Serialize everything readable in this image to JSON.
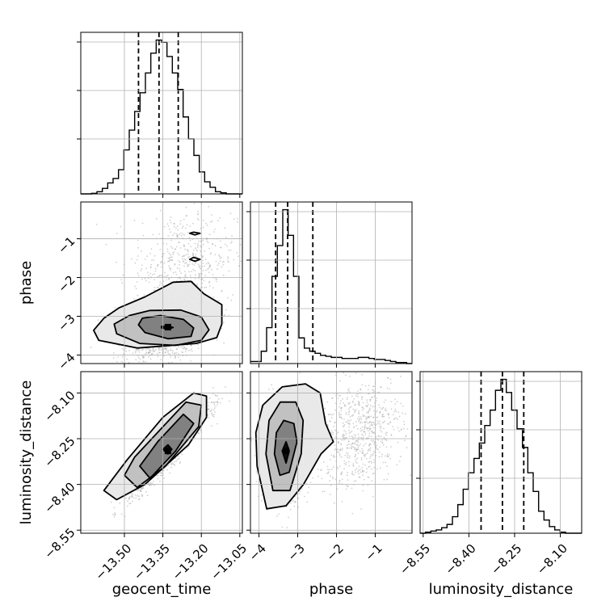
{
  "chart_data": {
    "type": "corner",
    "parameters": [
      "geocent_time",
      "phase",
      "luminosity_distance"
    ],
    "axis_labels": {
      "x": [
        "geocent_time",
        "phase",
        "luminosity_distance"
      ],
      "y": [
        "",
        "phase",
        "luminosity_distance"
      ]
    },
    "ranges": {
      "geocent_time": [
        -13.67,
        -13.04
      ],
      "phase": [
        -4.22,
        -0.05
      ],
      "luminosity_distance": [
        -8.56,
        -8.03
      ]
    },
    "ticks": {
      "geocent_time": [
        {
          "value": -13.5,
          "label": "−13.50"
        },
        {
          "value": -13.35,
          "label": "−13.35"
        },
        {
          "value": -13.2,
          "label": "−13.20"
        },
        {
          "value": -13.05,
          "label": "−13.05"
        }
      ],
      "phase": [
        {
          "value": -4,
          "label": "−4"
        },
        {
          "value": -3,
          "label": "−3"
        },
        {
          "value": -2,
          "label": "−2"
        },
        {
          "value": -1,
          "label": "−1"
        }
      ],
      "luminosity_distance": [
        {
          "value": -8.55,
          "label": "−8.55"
        },
        {
          "value": -8.4,
          "label": "−8.40"
        },
        {
          "value": -8.25,
          "label": "−8.25"
        },
        {
          "value": -8.1,
          "label": "−8.10"
        }
      ]
    },
    "histograms": {
      "geocent_time": {
        "bin_edges": [
          -13.67,
          -13.649,
          -13.628,
          -13.607,
          -13.586,
          -13.565,
          -13.544,
          -13.523,
          -13.502,
          -13.481,
          -13.46,
          -13.439,
          -13.418,
          -13.397,
          -13.376,
          -13.355,
          -13.334,
          -13.313,
          -13.292,
          -13.271,
          -13.25,
          -13.229,
          -13.208,
          -13.187,
          -13.166,
          -13.145,
          -13.124,
          -13.103,
          -13.082,
          -13.061,
          -13.04
        ],
        "values": [
          0,
          0,
          0.5,
          2,
          5,
          10,
          14,
          22,
          40,
          58,
          75,
          92,
          110,
          128,
          140,
          138,
          125,
          110,
          95,
          70,
          50,
          35,
          20,
          11,
          6,
          2,
          1,
          0,
          0,
          0
        ],
        "quantiles": [
          -13.445,
          -13.365,
          -13.29
        ]
      },
      "phase": {
        "bin_edges": [
          -4.22,
          -4.081,
          -3.942,
          -3.803,
          -3.664,
          -3.525,
          -3.386,
          -3.247,
          -3.108,
          -2.969,
          -2.83,
          -2.691,
          -2.552,
          -2.413,
          -2.274,
          -2.135,
          -1.996,
          -1.857,
          -1.718,
          -1.579,
          -1.44,
          -1.301,
          -1.162,
          -1.023,
          -0.884,
          -0.745,
          -0.606,
          -0.467,
          -0.328,
          -0.189,
          -0.05
        ],
        "values": [
          2,
          2,
          12,
          35,
          85,
          115,
          150,
          125,
          85,
          25,
          15,
          12,
          10,
          8,
          7,
          6,
          6,
          5,
          5,
          5,
          6,
          6,
          5,
          4,
          4,
          3,
          2,
          1,
          1,
          0
        ],
        "quantiles": [
          -3.57,
          -3.26,
          -2.61
        ]
      },
      "luminosity_distance": {
        "bin_edges": [
          -8.56,
          -8.5423,
          -8.5247,
          -8.507,
          -8.4893,
          -8.4717,
          -8.454,
          -8.4363,
          -8.4187,
          -8.401,
          -8.3833,
          -8.3657,
          -8.348,
          -8.3303,
          -8.3127,
          -8.295,
          -8.2773,
          -8.2597,
          -8.242,
          -8.2243,
          -8.2067,
          -8.189,
          -8.1713,
          -8.1537,
          -8.136,
          -8.1183,
          -8.1007,
          -8.083,
          -8.0653,
          -8.0477,
          -8.03
        ],
        "values": [
          0,
          1,
          2,
          3,
          5,
          8,
          15,
          26,
          40,
          55,
          68,
          82,
          98,
          112,
          130,
          140,
          128,
          112,
          95,
          78,
          55,
          38,
          20,
          12,
          6,
          3,
          1,
          0,
          0,
          0
        ],
        "quantiles": [
          -8.36,
          -8.29,
          -8.22
        ]
      }
    },
    "pairs": [
      {
        "x": "geocent_time",
        "y": "phase",
        "center": [
          -13.33,
          -3.28
        ],
        "contour_levels": [
          [
            [
              -13.355,
              -3.3
            ],
            [
              -13.33,
              -3.33
            ],
            [
              -13.31,
              -3.29
            ],
            [
              -13.33,
              -3.25
            ],
            [
              -13.355,
              -3.26
            ]
          ],
          [
            [
              -13.445,
              -3.22
            ],
            [
              -13.42,
              -3.42
            ],
            [
              -13.33,
              -3.58
            ],
            [
              -13.24,
              -3.52
            ],
            [
              -13.23,
              -3.3
            ],
            [
              -13.27,
              -3.08
            ],
            [
              -13.36,
              -2.98
            ],
            [
              -13.43,
              -3.05
            ]
          ],
          [
            [
              -13.53,
              -3.45
            ],
            [
              -13.44,
              -3.7
            ],
            [
              -13.3,
              -3.75
            ],
            [
              -13.2,
              -3.62
            ],
            [
              -13.17,
              -3.35
            ],
            [
              -13.2,
              -3.02
            ],
            [
              -13.28,
              -2.84
            ],
            [
              -13.4,
              -2.85
            ],
            [
              -13.48,
              -2.98
            ],
            [
              -13.54,
              -3.2
            ]
          ],
          [
            [
              -13.6,
              -3.62
            ],
            [
              -13.45,
              -3.82
            ],
            [
              -13.22,
              -3.7
            ],
            [
              -13.14,
              -3.55
            ],
            [
              -13.12,
              -3.2
            ],
            [
              -13.12,
              -2.7
            ],
            [
              -13.19,
              -2.42
            ],
            [
              -13.24,
              -2.1
            ],
            [
              -13.31,
              -2.12
            ],
            [
              -13.42,
              -2.5
            ],
            [
              -13.52,
              -2.78
            ],
            [
              -13.58,
              -3.05
            ],
            [
              -13.62,
              -3.36
            ]
          ],
          [
            [
              -13.23,
              -0.83
            ],
            [
              -13.205,
              -0.86
            ],
            [
              -13.225,
              -0.9
            ],
            [
              -13.245,
              -0.86
            ]
          ],
          [
            [
              -13.23,
              -1.48
            ],
            [
              -13.205,
              -1.53
            ],
            [
              -13.225,
              -1.58
            ],
            [
              -13.245,
              -1.53
            ]
          ]
        ]
      },
      {
        "x": "geocent_time",
        "y": "luminosity_distance",
        "center": [
          -13.33,
          -8.29
        ],
        "contour_levels": [
          [
            [
              -13.35,
              -8.285
            ],
            [
              -13.33,
              -8.3
            ],
            [
              -13.315,
              -8.285
            ],
            [
              -13.33,
              -8.27
            ]
          ],
          [
            [
              -13.44,
              -8.34
            ],
            [
              -13.4,
              -8.38
            ],
            [
              -13.3,
              -8.29
            ],
            [
              -13.23,
              -8.2
            ],
            [
              -13.27,
              -8.17
            ],
            [
              -13.37,
              -8.26
            ]
          ],
          [
            [
              -13.5,
              -8.37
            ],
            [
              -13.45,
              -8.41
            ],
            [
              -13.34,
              -8.34
            ],
            [
              -13.21,
              -8.21
            ],
            [
              -13.2,
              -8.14
            ],
            [
              -13.26,
              -8.13
            ],
            [
              -13.36,
              -8.22
            ],
            [
              -13.46,
              -8.31
            ]
          ],
          [
            [
              -13.58,
              -8.42
            ],
            [
              -13.53,
              -8.45
            ],
            [
              -13.42,
              -8.4
            ],
            [
              -13.25,
              -8.27
            ],
            [
              -13.18,
              -8.18
            ],
            [
              -13.18,
              -8.11
            ],
            [
              -13.23,
              -8.1
            ],
            [
              -13.35,
              -8.18
            ],
            [
              -13.49,
              -8.32
            ]
          ]
        ]
      },
      {
        "x": "phase",
        "y": "luminosity_distance",
        "center": [
          -3.3,
          -8.29
        ],
        "contour_levels": [
          [
            [
              -3.4,
              -8.29
            ],
            [
              -3.3,
              -8.33
            ],
            [
              -3.22,
              -8.29
            ],
            [
              -3.3,
              -8.26
            ]
          ],
          [
            [
              -3.6,
              -8.3
            ],
            [
              -3.46,
              -8.37
            ],
            [
              -3.22,
              -8.36
            ],
            [
              -3.02,
              -8.26
            ],
            [
              -3.1,
              -8.2
            ],
            [
              -3.36,
              -8.19
            ],
            [
              -3.55,
              -8.23
            ]
          ],
          [
            [
              -3.82,
              -8.3
            ],
            [
              -3.64,
              -8.42
            ],
            [
              -3.2,
              -8.42
            ],
            [
              -2.91,
              -8.3
            ],
            [
              -2.86,
              -8.19
            ],
            [
              -3.05,
              -8.13
            ],
            [
              -3.45,
              -8.13
            ],
            [
              -3.74,
              -8.19
            ]
          ],
          [
            [
              -4.05,
              -8.34
            ],
            [
              -3.8,
              -8.48
            ],
            [
              -3.3,
              -8.47
            ],
            [
              -2.85,
              -8.4
            ],
            [
              -2.4,
              -8.3
            ],
            [
              -2.08,
              -8.26
            ],
            [
              -2.28,
              -8.2
            ],
            [
              -2.42,
              -8.1
            ],
            [
              -2.8,
              -8.07
            ],
            [
              -3.4,
              -8.08
            ],
            [
              -3.9,
              -8.14
            ],
            [
              -4.08,
              -8.23
            ]
          ]
        ]
      }
    ],
    "grid": true
  }
}
